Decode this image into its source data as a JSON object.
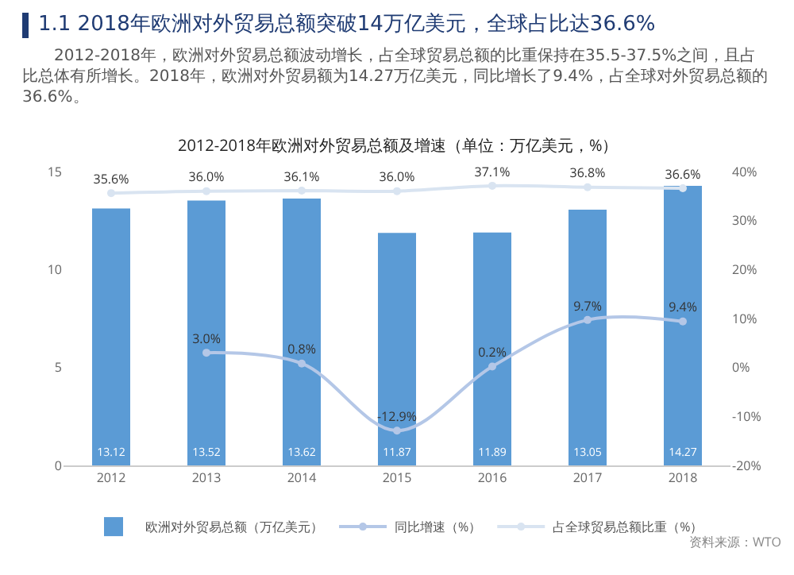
{
  "chart_data": {
    "type": "bar",
    "title": "1.1 2018年欧洲对外贸易总额突破14万亿美元，全球占比达36.6%",
    "subtitle": "2012-2018年，欧洲对外贸易总额波动增长，占全球贸易总额的比重保持在35.5-37.5%之间，且占比总体有所增长。2018年，欧洲对外贸易额为14.27万亿美元，同比增长了9.4%，占全球对外贸易总额的36.6%。",
    "annotations": [
      "2012-2018年欧洲对外贸易总额及增速（单位：万亿美元，%）",
      "资料来源：WTO"
    ],
    "categories": [
      "2012",
      "2013",
      "2014",
      "2015",
      "2016",
      "2017",
      "2018"
    ],
    "series": [
      {
        "name": "欧洲对外贸易总额（万亿美元）",
        "color": "#5b9bd5",
        "values": [
          13.12,
          13.52,
          13.62,
          11.87,
          11.89,
          13.05,
          14.27
        ]
      },
      {
        "name": "同比增速（%）",
        "type": "line",
        "axis": "y2",
        "color": "#b4c7e7",
        "values": [
          null,
          3.0,
          0.8,
          -12.9,
          0.2,
          9.7,
          9.4
        ],
        "value_labels": [
          null,
          "3.0%",
          "0.8%",
          "-12.9%",
          "0.2%",
          "9.7%",
          "9.4%"
        ]
      },
      {
        "name": "占全球贸易总额比重（%）",
        "type": "line",
        "axis": "y2",
        "color": "#d9e4f1",
        "values": [
          35.6,
          36.0,
          36.1,
          36.0,
          37.1,
          36.8,
          36.6
        ],
        "value_labels": [
          "35.6%",
          "36.0%",
          "36.1%",
          "36.0%",
          "37.1%",
          "36.8%",
          "36.6%"
        ]
      }
    ],
    "ylim": [
      0,
      15
    ],
    "yticks": [
      0,
      5,
      10,
      15
    ],
    "y2lim": [
      -20,
      40
    ],
    "y2ticks": [
      {
        "value": -20,
        "label": "-20%"
      },
      {
        "value": -10,
        "label": "-10%"
      },
      {
        "value": 0,
        "label": "0%"
      },
      {
        "value": 10,
        "label": "10%"
      },
      {
        "value": 20,
        "label": "20%"
      },
      {
        "value": 30,
        "label": "30%"
      },
      {
        "value": 40,
        "label": "40%"
      }
    ],
    "data_labels": true,
    "grid": false,
    "legend": "bottom",
    "marker": "circle",
    "line_style": "solid"
  }
}
